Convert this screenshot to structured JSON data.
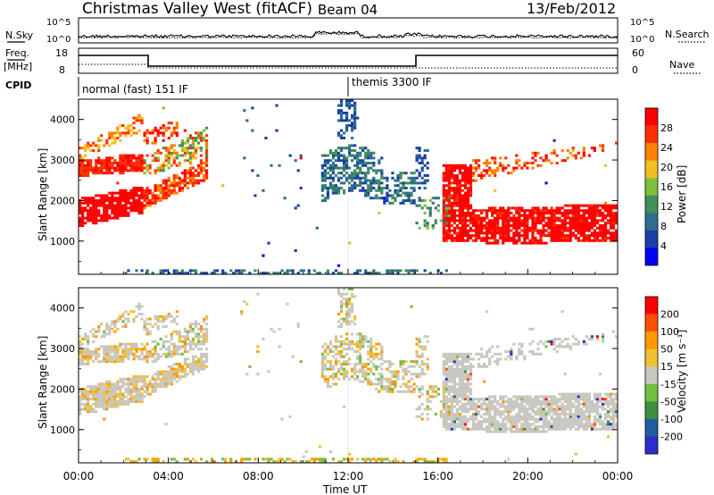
{
  "header": {
    "title": "Christmas Valley West (fitACF)",
    "beam": "Beam 04",
    "date": "13/Feb/2012"
  },
  "noise_panel": {
    "left_label": "N.Sky",
    "right_label": "N.Search",
    "left_ticks": [
      "10^5",
      "10^0"
    ],
    "right_ticks": [
      "10^5",
      "10^0"
    ]
  },
  "freq_panel": {
    "left_label_1": "Freq.",
    "left_label_2": "[MHz]",
    "right_label": "Nave",
    "left_ticks": [
      "18",
      "8"
    ],
    "right_ticks": [
      "60",
      "0"
    ]
  },
  "cpid": {
    "label": "CPID",
    "modes": [
      {
        "name": "normal (fast) 151 IF",
        "start_hour": 0
      },
      {
        "name": "themis 3300 IF",
        "start_hour": 12
      }
    ]
  },
  "colors": {
    "power_scale": [
      "#0000ff",
      "#1a3fa8",
      "#2f6d8c",
      "#3f8f5a",
      "#7fbf3f",
      "#f0c020",
      "#ff8000",
      "#ff3000",
      "#ff0000"
    ],
    "velocity_scale": [
      "#2c2ccf",
      "#1f5fa0",
      "#3f8f3f",
      "#70c040",
      "#c8c8c0",
      "#f0c030",
      "#ff9a00",
      "#ff5000",
      "#ff0000"
    ]
  },
  "chart_data": [
    {
      "type": "heatmap",
      "name": "power",
      "ylabel": "Slant Range [km]",
      "xlabel": "",
      "x_range_hours": [
        0,
        24
      ],
      "ylim": [
        180,
        4500
      ],
      "yticks": [
        "1000",
        "2000",
        "3000",
        "4000"
      ],
      "colorbar_label": "Power [dB]",
      "colorbar_ticks": [
        "4",
        "8",
        "12",
        "16",
        "20",
        "24",
        "28"
      ],
      "colorbar_range": [
        0,
        30
      ]
    },
    {
      "type": "heatmap",
      "name": "velocity",
      "ylabel": "Slant Range [km]",
      "xlabel": "Time UT",
      "x_range_hours": [
        0,
        24
      ],
      "ylim": [
        180,
        4500
      ],
      "yticks": [
        "1000",
        "2000",
        "3000",
        "4000"
      ],
      "xticks": [
        "00:00",
        "04:00",
        "08:00",
        "12:00",
        "16:00",
        "20:00",
        "00:00"
      ],
      "colorbar_label": "Velocity [m s⁻¹]",
      "colorbar_ticks": [
        "200",
        "100",
        "50",
        "15",
        "-15",
        "-50",
        "-100",
        "-200"
      ],
      "colorbar_range": [
        -250,
        250
      ]
    }
  ]
}
